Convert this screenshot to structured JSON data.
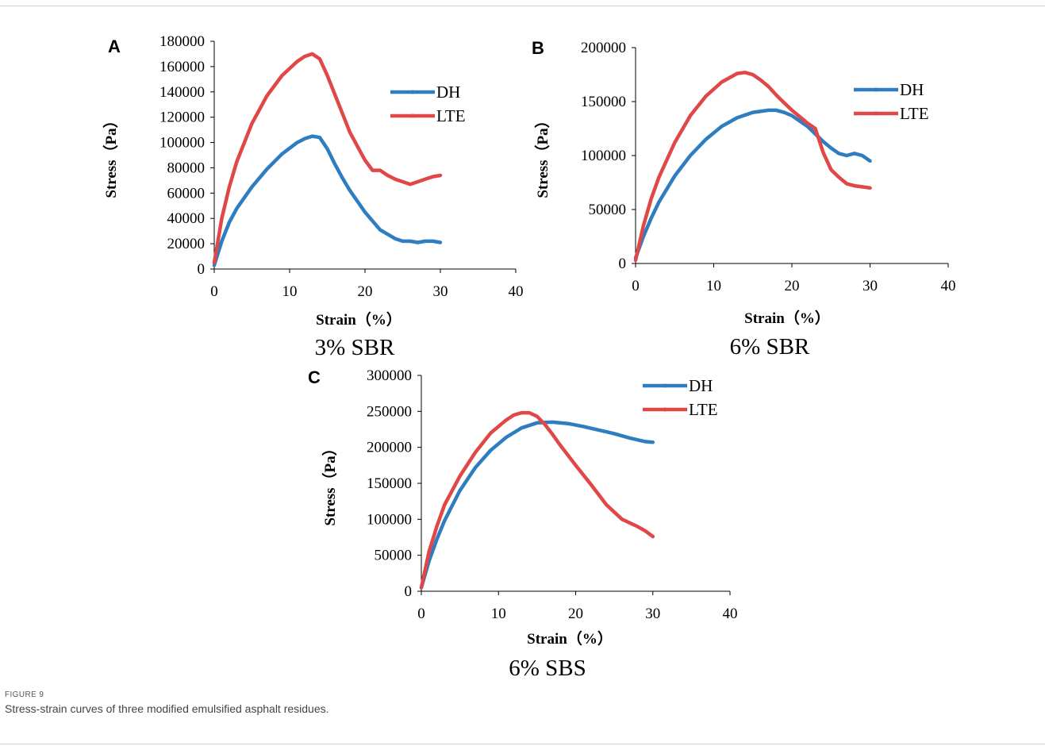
{
  "figure": {
    "label": "FIGURE 9",
    "caption": "Stress-strain curves of three modified emulsified asphalt residues."
  },
  "colors": {
    "DH": "#2E7DC0",
    "LTE": "#E04848"
  },
  "chart_data": [
    {
      "type": "line",
      "panel": "A",
      "title": "3% SBR",
      "xlabel": "Strain（%）",
      "ylabel": "Stress（Pa）",
      "xlim": [
        0,
        40
      ],
      "ylim": [
        0,
        180000
      ],
      "xticks": [
        0,
        10,
        20,
        30,
        40
      ],
      "yticks": [
        0,
        20000,
        40000,
        60000,
        80000,
        100000,
        120000,
        140000,
        160000,
        180000
      ],
      "legend": "top-right",
      "grid": false,
      "series": [
        {
          "name": "DH",
          "x": [
            0,
            1,
            2,
            3,
            5,
            7,
            9,
            11,
            12,
            13,
            14,
            15,
            16,
            17,
            18,
            20,
            22,
            24,
            25,
            26,
            27,
            28,
            29,
            30
          ],
          "y": [
            3000,
            22000,
            37000,
            48000,
            65000,
            79000,
            91000,
            100000,
            103000,
            105000,
            104000,
            95000,
            83000,
            72000,
            62000,
            45000,
            31000,
            24000,
            22000,
            22000,
            21000,
            22000,
            22000,
            21000
          ]
        },
        {
          "name": "LTE",
          "x": [
            0,
            1,
            2,
            3,
            5,
            7,
            9,
            11,
            12,
            13,
            14,
            15,
            16,
            17,
            18,
            20,
            21,
            22,
            23,
            24,
            25,
            26,
            27,
            28,
            29,
            30
          ],
          "y": [
            5000,
            40000,
            65000,
            85000,
            115000,
            137000,
            153000,
            164000,
            168000,
            170000,
            166000,
            153000,
            138000,
            123000,
            108000,
            86000,
            78000,
            78000,
            74000,
            71000,
            69000,
            67000,
            69000,
            71000,
            73000,
            74000
          ]
        }
      ]
    },
    {
      "type": "line",
      "panel": "B",
      "title": "6% SBR",
      "xlabel": "Strain（%）",
      "ylabel": "Stress（Pa）",
      "xlim": [
        0,
        40
      ],
      "ylim": [
        0,
        200000
      ],
      "xticks": [
        0,
        10,
        20,
        30,
        40
      ],
      "yticks": [
        0,
        50000,
        100000,
        150000,
        200000
      ],
      "legend": "top-right",
      "grid": false,
      "series": [
        {
          "name": "DH",
          "x": [
            0,
            1,
            2,
            3,
            5,
            7,
            9,
            11,
            13,
            15,
            17,
            18,
            19,
            20,
            21,
            22,
            23,
            24,
            25,
            26,
            27,
            28,
            29,
            30
          ],
          "y": [
            5000,
            25000,
            42000,
            57000,
            81000,
            100000,
            115000,
            127000,
            135000,
            140000,
            142000,
            142000,
            140000,
            137000,
            132000,
            127000,
            120000,
            113000,
            107000,
            102000,
            100000,
            102000,
            100000,
            95000
          ]
        },
        {
          "name": "LTE",
          "x": [
            0,
            1,
            2,
            3,
            5,
            7,
            9,
            11,
            13,
            14,
            15,
            16,
            17,
            18,
            19,
            20,
            21,
            22,
            23,
            24,
            25,
            26,
            27,
            28,
            29,
            30
          ],
          "y": [
            3000,
            35000,
            60000,
            80000,
            112000,
            137000,
            155000,
            168000,
            176000,
            177000,
            175000,
            170000,
            164000,
            156000,
            149000,
            142000,
            136000,
            130000,
            125000,
            103000,
            87000,
            80000,
            74000,
            72000,
            71000,
            70000
          ]
        }
      ]
    },
    {
      "type": "line",
      "panel": "C",
      "title": "6% SBS",
      "xlabel": "Strain（%）",
      "ylabel": "Stress（Pa）",
      "xlim": [
        0,
        40
      ],
      "ylim": [
        0,
        300000
      ],
      "xticks": [
        0,
        10,
        20,
        30,
        40
      ],
      "yticks": [
        0,
        50000,
        100000,
        150000,
        200000,
        250000,
        300000
      ],
      "legend": "top-right",
      "grid": false,
      "series": [
        {
          "name": "DH",
          "x": [
            0,
            1,
            2,
            3,
            5,
            7,
            9,
            11,
            13,
            15,
            17,
            19,
            21,
            23,
            25,
            27,
            29,
            30
          ],
          "y": [
            5000,
            42000,
            72000,
            98000,
            140000,
            172000,
            196000,
            214000,
            227000,
            234000,
            235000,
            233000,
            229000,
            224000,
            219000,
            213000,
            208000,
            207000
          ]
        },
        {
          "name": "LTE",
          "x": [
            0,
            1,
            2,
            3,
            5,
            7,
            9,
            11,
            12,
            13,
            14,
            15,
            16,
            17,
            18,
            20,
            22,
            24,
            26,
            28,
            29,
            30
          ],
          "y": [
            5000,
            55000,
            90000,
            120000,
            160000,
            193000,
            220000,
            238000,
            245000,
            248000,
            248000,
            243000,
            232000,
            218000,
            203000,
            175000,
            148000,
            120000,
            100000,
            90000,
            84000,
            76000
          ]
        }
      ]
    }
  ]
}
